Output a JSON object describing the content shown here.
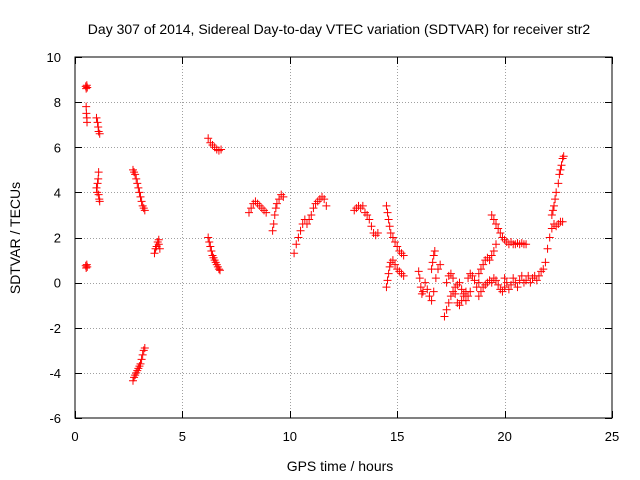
{
  "chart_data": {
    "type": "scatter",
    "title": "Day 307 of 2014, Sidereal Day-to-day VTEC variation (SDTVAR) for receiver str2",
    "xlabel": "GPS time / hours",
    "ylabel": "SDTVAR / TECUs",
    "xlim": [
      0,
      25
    ],
    "ylim": [
      -6,
      10
    ],
    "xticks": [
      0,
      5,
      10,
      15,
      20,
      25
    ],
    "yticks": [
      -6,
      -4,
      -2,
      0,
      2,
      4,
      6,
      8,
      10
    ],
    "grid": true,
    "marker": "+",
    "marker_color": "#ff0000",
    "segments": [
      [
        [
          0.5,
          8.7
        ],
        [
          0.52,
          8.6
        ],
        [
          0.55,
          8.75
        ],
        [
          0.57,
          8.65
        ]
      ],
      [
        [
          0.5,
          0.75
        ],
        [
          0.52,
          0.65
        ],
        [
          0.55,
          0.8
        ],
        [
          0.57,
          0.7
        ]
      ],
      [
        [
          0.52,
          7.8
        ],
        [
          0.53,
          7.5
        ],
        [
          0.55,
          7.3
        ],
        [
          0.56,
          7.1
        ]
      ],
      [
        [
          1.0,
          7.3
        ],
        [
          1.05,
          7.1
        ],
        [
          1.08,
          6.9
        ],
        [
          1.1,
          6.7
        ],
        [
          1.15,
          6.6
        ]
      ],
      [
        [
          1.0,
          4.2
        ],
        [
          1.03,
          4.0
        ],
        [
          1.05,
          4.4
        ],
        [
          1.08,
          4.6
        ],
        [
          1.1,
          4.9
        ],
        [
          1.1,
          3.9
        ],
        [
          1.13,
          3.7
        ],
        [
          1.15,
          3.6
        ]
      ],
      [
        [
          2.7,
          5.0
        ],
        [
          2.75,
          4.9
        ],
        [
          2.8,
          4.8
        ],
        [
          2.85,
          4.6
        ],
        [
          2.9,
          4.4
        ],
        [
          2.95,
          4.2
        ],
        [
          3.0,
          4.0
        ],
        [
          3.05,
          3.8
        ],
        [
          3.1,
          3.6
        ],
        [
          3.15,
          3.4
        ],
        [
          3.2,
          3.3
        ],
        [
          3.25,
          3.2
        ]
      ],
      [
        [
          2.7,
          -4.35
        ],
        [
          2.75,
          -4.2
        ],
        [
          2.8,
          -4.1
        ],
        [
          2.85,
          -4.0
        ],
        [
          2.9,
          -3.9
        ],
        [
          2.95,
          -3.8
        ],
        [
          3.0,
          -3.7
        ],
        [
          3.05,
          -3.6
        ],
        [
          3.1,
          -3.4
        ],
        [
          3.15,
          -3.2
        ],
        [
          3.2,
          -3.0
        ],
        [
          3.25,
          -2.9
        ]
      ],
      [
        [
          3.7,
          1.3
        ],
        [
          3.75,
          1.5
        ],
        [
          3.8,
          1.6
        ],
        [
          3.85,
          1.8
        ],
        [
          3.9,
          1.9
        ],
        [
          3.9,
          1.7
        ],
        [
          3.95,
          1.5
        ]
      ],
      [
        [
          6.2,
          6.4
        ],
        [
          6.3,
          6.2
        ],
        [
          6.4,
          6.1
        ],
        [
          6.5,
          6.0
        ],
        [
          6.6,
          5.9
        ],
        [
          6.7,
          5.85
        ],
        [
          6.8,
          5.9
        ]
      ],
      [
        [
          6.2,
          2.0
        ],
        [
          6.25,
          1.8
        ],
        [
          6.3,
          1.6
        ],
        [
          6.35,
          1.4
        ],
        [
          6.4,
          1.2
        ],
        [
          6.45,
          1.1
        ],
        [
          6.5,
          1.0
        ],
        [
          6.55,
          0.9
        ],
        [
          6.6,
          0.8
        ],
        [
          6.65,
          0.7
        ],
        [
          6.7,
          0.6
        ],
        [
          6.75,
          0.55
        ]
      ],
      [
        [
          8.1,
          3.1
        ],
        [
          8.2,
          3.3
        ],
        [
          8.3,
          3.5
        ],
        [
          8.4,
          3.6
        ],
        [
          8.5,
          3.5
        ],
        [
          8.6,
          3.4
        ],
        [
          8.7,
          3.3
        ],
        [
          8.8,
          3.2
        ],
        [
          8.9,
          3.1
        ]
      ],
      [
        [
          9.2,
          2.3
        ],
        [
          9.25,
          2.6
        ],
        [
          9.3,
          3.0
        ],
        [
          9.35,
          3.3
        ],
        [
          9.4,
          3.5
        ],
        [
          9.5,
          3.7
        ],
        [
          9.6,
          3.9
        ],
        [
          9.7,
          3.8
        ]
      ],
      [
        [
          10.2,
          1.3
        ],
        [
          10.3,
          1.7
        ],
        [
          10.4,
          2.0
        ],
        [
          10.5,
          2.3
        ],
        [
          10.6,
          2.6
        ],
        [
          10.7,
          2.8
        ],
        [
          10.8,
          2.6
        ],
        [
          10.9,
          2.8
        ],
        [
          11.0,
          3.0
        ],
        [
          11.1,
          3.3
        ],
        [
          11.2,
          3.5
        ],
        [
          11.3,
          3.6
        ],
        [
          11.4,
          3.7
        ],
        [
          11.5,
          3.8
        ],
        [
          11.6,
          3.7
        ],
        [
          11.7,
          3.4
        ]
      ],
      [
        [
          13.0,
          3.2
        ],
        [
          13.1,
          3.3
        ],
        [
          13.2,
          3.4
        ],
        [
          13.3,
          3.3
        ],
        [
          13.4,
          3.4
        ],
        [
          13.5,
          3.1
        ],
        [
          13.6,
          3.0
        ],
        [
          13.7,
          2.8
        ],
        [
          13.8,
          2.5
        ],
        [
          13.9,
          2.2
        ],
        [
          14.0,
          2.1
        ],
        [
          14.1,
          2.2
        ]
      ],
      [
        [
          14.5,
          3.4
        ],
        [
          14.55,
          3.1
        ],
        [
          14.6,
          2.8
        ],
        [
          14.65,
          2.5
        ],
        [
          14.7,
          2.2
        ],
        [
          14.8,
          2.0
        ],
        [
          14.9,
          1.8
        ],
        [
          15.0,
          1.6
        ],
        [
          15.1,
          1.4
        ],
        [
          15.2,
          1.3
        ],
        [
          15.3,
          1.2
        ]
      ],
      [
        [
          14.5,
          -0.2
        ],
        [
          14.55,
          0.1
        ],
        [
          14.6,
          0.4
        ],
        [
          14.65,
          0.7
        ],
        [
          14.7,
          0.9
        ],
        [
          14.8,
          1.0
        ],
        [
          14.9,
          0.8
        ],
        [
          15.0,
          0.6
        ],
        [
          15.1,
          0.5
        ],
        [
          15.2,
          0.4
        ],
        [
          15.3,
          0.3
        ]
      ],
      [
        [
          16.0,
          0.5
        ],
        [
          16.05,
          0.2
        ],
        [
          16.1,
          -0.2
        ],
        [
          16.15,
          -0.5
        ],
        [
          16.2,
          -0.4
        ],
        [
          16.3,
          0.0
        ],
        [
          16.4,
          -0.3
        ],
        [
          16.5,
          -0.6
        ],
        [
          16.6,
          -0.8
        ],
        [
          16.7,
          -0.4
        ],
        [
          16.8,
          0.2
        ],
        [
          16.9,
          0.6
        ],
        [
          17.0,
          0.8
        ]
      ],
      [
        [
          16.6,
          0.6
        ],
        [
          16.65,
          0.9
        ],
        [
          16.7,
          1.2
        ],
        [
          16.75,
          1.4
        ]
      ],
      [
        [
          17.2,
          -1.5
        ],
        [
          17.3,
          -1.2
        ],
        [
          17.4,
          -0.9
        ],
        [
          17.5,
          -0.6
        ],
        [
          17.6,
          -0.4
        ],
        [
          17.7,
          -0.2
        ],
        [
          17.8,
          -0.1
        ],
        [
          17.9,
          0.0
        ],
        [
          18.0,
          -0.3
        ],
        [
          18.1,
          -0.6
        ],
        [
          18.2,
          -0.4
        ],
        [
          18.3,
          0.2
        ],
        [
          18.4,
          0.4
        ],
        [
          18.5,
          0.3
        ],
        [
          18.6,
          0.1
        ],
        [
          18.7,
          -0.2
        ],
        [
          18.8,
          0.0
        ]
      ],
      [
        [
          17.3,
          0.0
        ],
        [
          17.4,
          0.3
        ],
        [
          17.5,
          0.4
        ],
        [
          17.6,
          0.2
        ],
        [
          17.7,
          -0.5
        ],
        [
          17.8,
          -0.9
        ],
        [
          17.9,
          -1.0
        ],
        [
          18.0,
          -0.8
        ],
        [
          18.1,
          -0.5
        ],
        [
          18.2,
          -0.8
        ],
        [
          18.3,
          -0.6
        ],
        [
          18.4,
          -0.4
        ]
      ],
      [
        [
          18.8,
          0.4
        ],
        [
          18.9,
          0.6
        ],
        [
          19.0,
          0.8
        ],
        [
          19.1,
          1.0
        ],
        [
          19.2,
          1.1
        ],
        [
          19.3,
          1.0
        ],
        [
          19.4,
          1.2
        ],
        [
          19.5,
          1.4
        ],
        [
          19.6,
          1.7
        ]
      ],
      [
        [
          18.8,
          -0.6
        ],
        [
          18.9,
          -0.4
        ],
        [
          19.0,
          -0.2
        ],
        [
          19.1,
          -0.1
        ],
        [
          19.2,
          0.0
        ],
        [
          19.3,
          0.1
        ],
        [
          19.4,
          0.0
        ],
        [
          19.5,
          0.2
        ],
        [
          19.6,
          0.1
        ],
        [
          19.7,
          -0.1
        ],
        [
          19.8,
          -0.3
        ],
        [
          19.9,
          -0.4
        ],
        [
          20.0,
          -0.2
        ]
      ],
      [
        [
          19.4,
          3.0
        ],
        [
          19.5,
          2.8
        ],
        [
          19.6,
          2.6
        ],
        [
          19.7,
          2.4
        ],
        [
          19.8,
          2.2
        ],
        [
          19.9,
          2.0
        ],
        [
          20.0,
          1.9
        ],
        [
          20.1,
          1.8
        ],
        [
          20.2,
          1.7
        ],
        [
          20.3,
          1.8
        ],
        [
          20.4,
          1.7
        ],
        [
          20.5,
          1.7
        ],
        [
          20.6,
          1.75
        ],
        [
          20.7,
          1.7
        ],
        [
          20.8,
          1.75
        ],
        [
          20.9,
          1.7
        ],
        [
          21.0,
          1.7
        ]
      ],
      [
        [
          20.0,
          0.2
        ],
        [
          20.1,
          0.0
        ],
        [
          20.2,
          -0.3
        ],
        [
          20.3,
          -0.1
        ],
        [
          20.4,
          0.2
        ],
        [
          20.5,
          0.0
        ],
        [
          20.6,
          -0.2
        ],
        [
          20.7,
          0.1
        ],
        [
          20.8,
          0.3
        ],
        [
          20.9,
          0.0
        ],
        [
          21.0,
          0.1
        ],
        [
          21.1,
          0.3
        ],
        [
          21.2,
          0.0
        ],
        [
          21.3,
          0.2
        ],
        [
          21.4,
          0.3
        ],
        [
          21.5,
          0.1
        ],
        [
          21.6,
          0.3
        ],
        [
          21.7,
          0.5
        ],
        [
          21.8,
          0.6
        ],
        [
          21.9,
          0.9
        ]
      ],
      [
        [
          22.0,
          1.5
        ],
        [
          22.1,
          2.0
        ],
        [
          22.2,
          2.4
        ],
        [
          22.3,
          2.6
        ],
        [
          22.4,
          2.5
        ],
        [
          22.5,
          2.6
        ],
        [
          22.6,
          2.7
        ],
        [
          22.7,
          2.7
        ]
      ],
      [
        [
          22.2,
          3.0
        ],
        [
          22.25,
          3.2
        ],
        [
          22.3,
          3.4
        ],
        [
          22.35,
          3.7
        ],
        [
          22.4,
          4.0
        ],
        [
          22.5,
          4.4
        ],
        [
          22.55,
          4.8
        ],
        [
          22.6,
          5.0
        ],
        [
          22.65,
          5.2
        ],
        [
          22.7,
          5.5
        ],
        [
          22.75,
          5.6
        ]
      ]
    ]
  }
}
